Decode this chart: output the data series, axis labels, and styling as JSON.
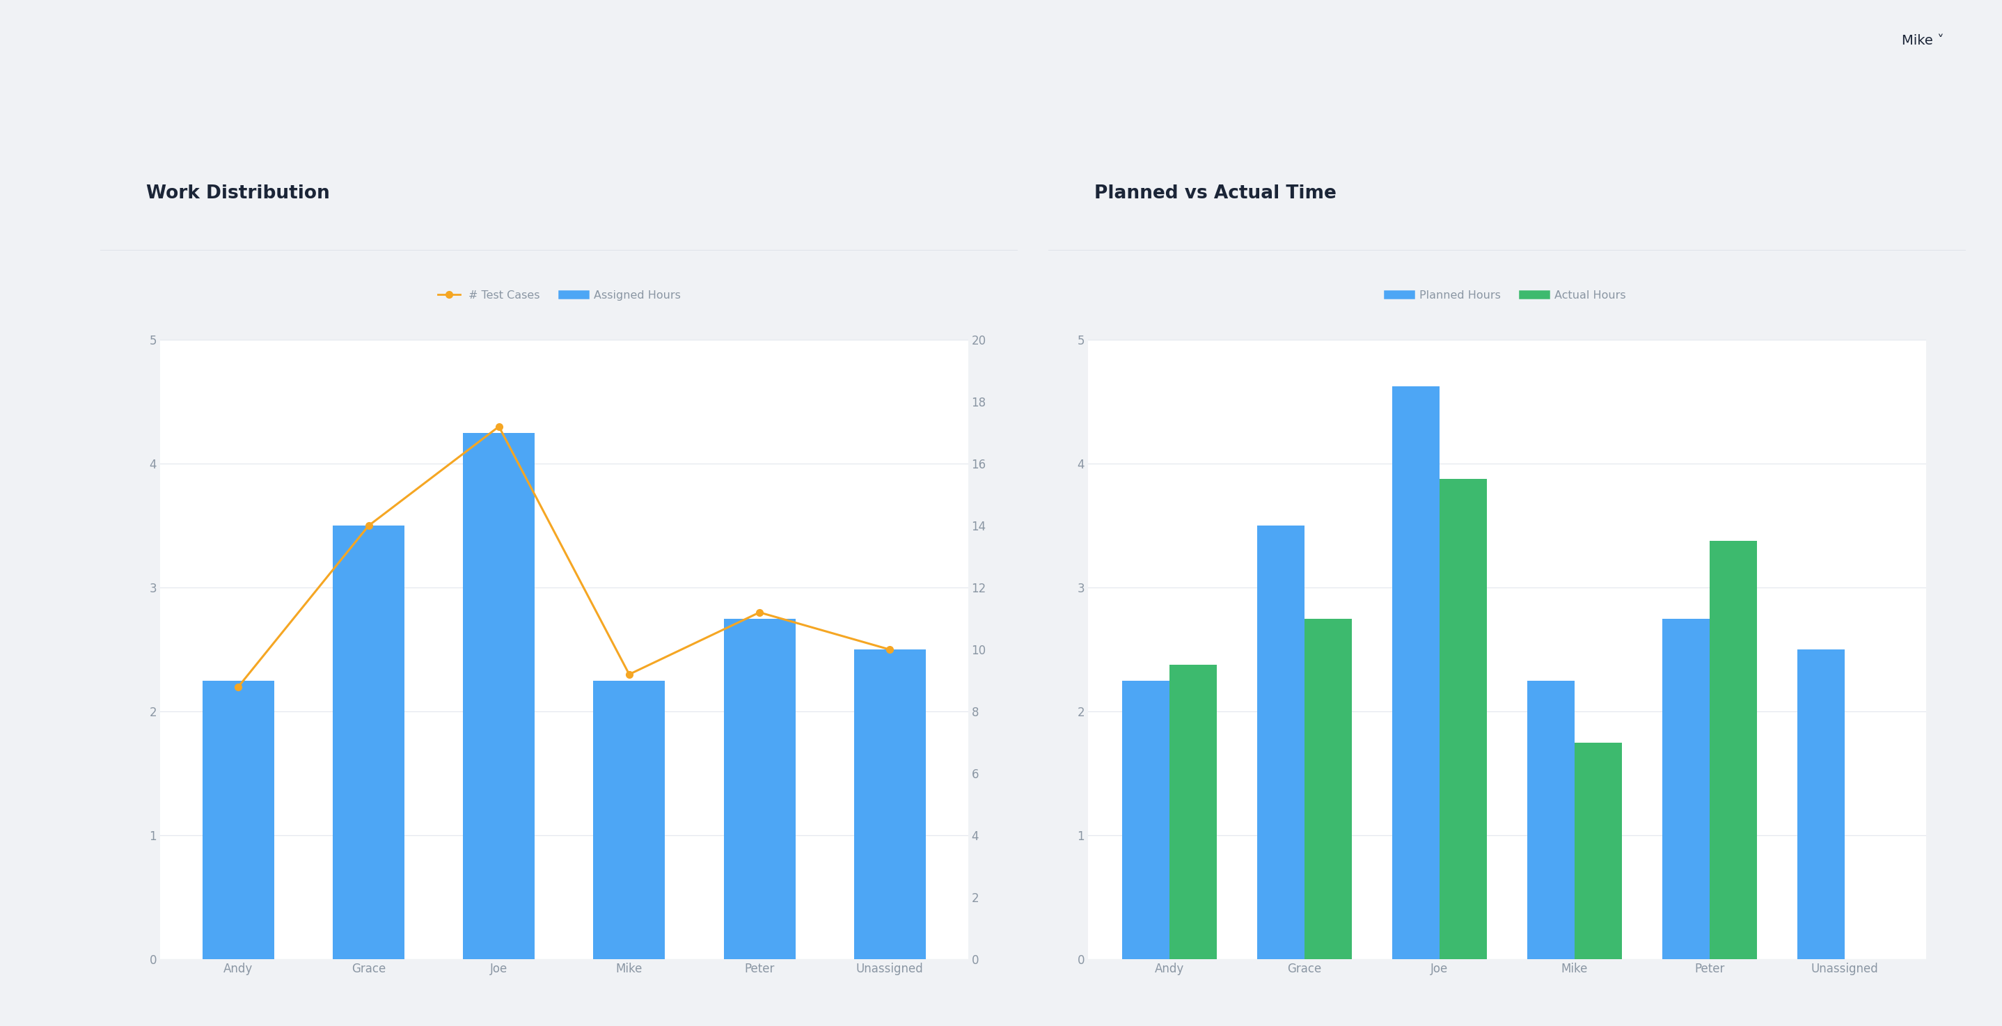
{
  "bg_color": "#f0f2f5",
  "sidebar_color": "#1b2537",
  "topbar_color": "#ffffff",
  "card_color": "#ffffff",
  "title_color": "#1b2537",
  "tick_color": "#8a96a3",
  "grid_color": "#e5e8ef",
  "divider_color": "#dde1e8",
  "chart1_title": "Work Distribution",
  "chart1_categories": [
    "Andy",
    "Grace",
    "Joe",
    "Mike",
    "Peter",
    "Unassigned"
  ],
  "chart1_bars_hours": [
    9.0,
    14.0,
    17.0,
    9.0,
    11.0,
    10.0
  ],
  "chart1_bar_color": "#4da6f5",
  "chart1_line_vals": [
    2.2,
    3.5,
    4.3,
    2.3,
    2.8,
    2.5
  ],
  "chart1_line_color": "#f5a623",
  "chart1_yleft": [
    0,
    1,
    2,
    3,
    4,
    5
  ],
  "chart1_yright": [
    0,
    2,
    4,
    6,
    8,
    10,
    12,
    14,
    16,
    18,
    20
  ],
  "chart1_yleft_max": 5,
  "chart1_yright_max": 20,
  "chart1_legend_line": "# Test Cases",
  "chart1_legend_bar": "Assigned Hours",
  "chart2_title": "Planned vs Actual Time",
  "chart2_categories": [
    "Andy",
    "Grace",
    "Joe",
    "Mike",
    "Peter",
    "Unassigned"
  ],
  "chart2_planned": [
    9.0,
    14.0,
    18.5,
    9.0,
    11.0,
    10.0
  ],
  "chart2_actual": [
    9.5,
    11.0,
    15.5,
    7.0,
    13.5,
    null
  ],
  "chart2_planned_color": "#4da6f5",
  "chart2_actual_color": "#3dba6e",
  "chart2_yleft": [
    0,
    1,
    2,
    3,
    4,
    5
  ],
  "chart2_yleft_max": 5,
  "chart2_yright_max": 20,
  "chart2_legend_planned": "Planned Hours",
  "chart2_legend_actual": "Actual Hours"
}
